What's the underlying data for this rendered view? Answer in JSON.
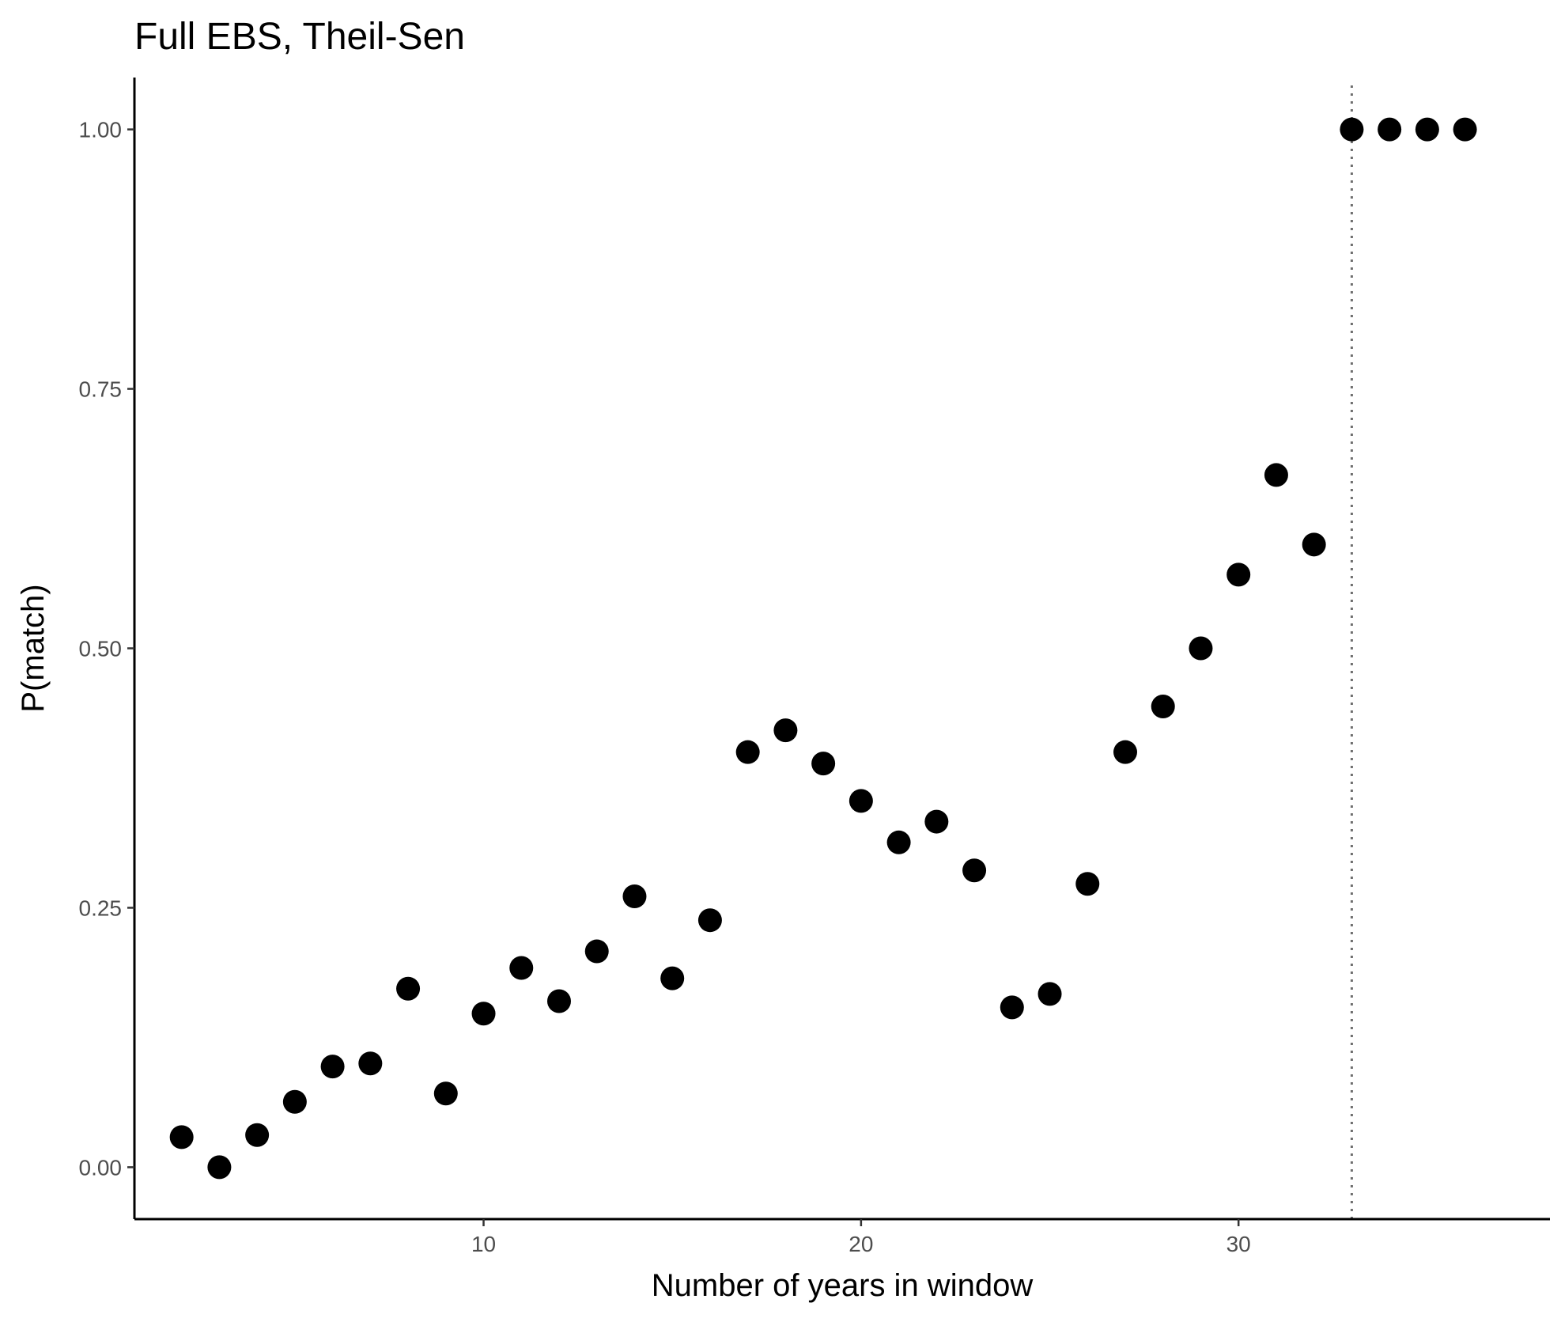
{
  "chart_data": {
    "type": "scatter",
    "title": "Full EBS, Theil-Sen",
    "xlabel": "Number of years in window",
    "ylabel": "P(match)",
    "xlim": [
      0.75,
      38.25
    ],
    "ylim": [
      -0.05,
      1.05
    ],
    "x_ticks": [
      10,
      20,
      30
    ],
    "x_tick_labels": [
      "10",
      "20",
      "30"
    ],
    "y_ticks": [
      0,
      0.25,
      0.5,
      0.75,
      1.0
    ],
    "y_tick_labels": [
      "0.00",
      "0.25",
      "0.50",
      "0.75",
      "1.00"
    ],
    "grid": false,
    "vline": {
      "x": 33,
      "style": "dotted",
      "color": "#6e6e6e"
    },
    "point_color": "#000000",
    "points": [
      {
        "x": 2,
        "y": 0.029
      },
      {
        "x": 3,
        "y": 0.0
      },
      {
        "x": 4,
        "y": 0.031
      },
      {
        "x": 5,
        "y": 0.063
      },
      {
        "x": 6,
        "y": 0.097
      },
      {
        "x": 7,
        "y": 0.1
      },
      {
        "x": 8,
        "y": 0.172
      },
      {
        "x": 9,
        "y": 0.071
      },
      {
        "x": 10,
        "y": 0.148
      },
      {
        "x": 11,
        "y": 0.192
      },
      {
        "x": 12,
        "y": 0.16
      },
      {
        "x": 13,
        "y": 0.208
      },
      {
        "x": 14,
        "y": 0.261
      },
      {
        "x": 15,
        "y": 0.182
      },
      {
        "x": 16,
        "y": 0.238
      },
      {
        "x": 17,
        "y": 0.4
      },
      {
        "x": 18,
        "y": 0.421
      },
      {
        "x": 19,
        "y": 0.389
      },
      {
        "x": 20,
        "y": 0.353
      },
      {
        "x": 21,
        "y": 0.313
      },
      {
        "x": 22,
        "y": 0.333
      },
      {
        "x": 23,
        "y": 0.286
      },
      {
        "x": 24,
        "y": 0.154
      },
      {
        "x": 25,
        "y": 0.167
      },
      {
        "x": 26,
        "y": 0.273
      },
      {
        "x": 27,
        "y": 0.4
      },
      {
        "x": 28,
        "y": 0.444
      },
      {
        "x": 29,
        "y": 0.5
      },
      {
        "x": 30,
        "y": 0.571
      },
      {
        "x": 31,
        "y": 0.667
      },
      {
        "x": 32,
        "y": 0.6
      },
      {
        "x": 33,
        "y": 1.0
      },
      {
        "x": 34,
        "y": 1.0
      },
      {
        "x": 35,
        "y": 1.0
      },
      {
        "x": 36,
        "y": 1.0
      }
    ]
  }
}
